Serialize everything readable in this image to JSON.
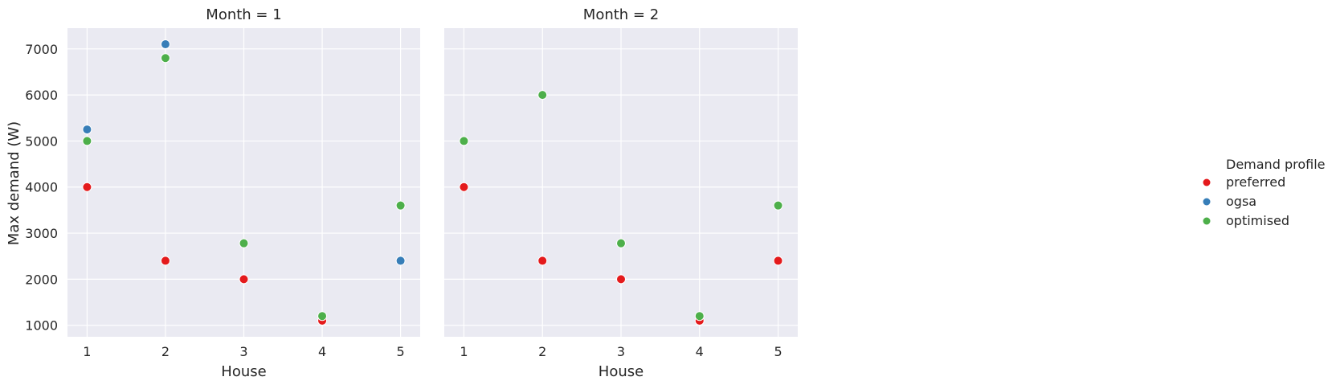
{
  "chart_data": {
    "type": "scatter",
    "facet_variable": "Month",
    "panels": [
      {
        "title": "Month = 1",
        "points": [
          {
            "series": "preferred",
            "x": 1,
            "y": 4000
          },
          {
            "series": "preferred",
            "x": 2,
            "y": 2400
          },
          {
            "series": "preferred",
            "x": 3,
            "y": 2000
          },
          {
            "series": "preferred",
            "x": 4,
            "y": 1100
          },
          {
            "series": "ogsa",
            "x": 1,
            "y": 5250
          },
          {
            "series": "ogsa",
            "x": 2,
            "y": 7100
          },
          {
            "series": "ogsa",
            "x": 5,
            "y": 2400
          },
          {
            "series": "optimised",
            "x": 1,
            "y": 5000
          },
          {
            "series": "optimised",
            "x": 2,
            "y": 6800
          },
          {
            "series": "optimised",
            "x": 3,
            "y": 2780
          },
          {
            "series": "optimised",
            "x": 4,
            "y": 1200
          },
          {
            "series": "optimised",
            "x": 5,
            "y": 3600
          }
        ]
      },
      {
        "title": "Month = 2",
        "points": [
          {
            "series": "preferred",
            "x": 1,
            "y": 4000
          },
          {
            "series": "preferred",
            "x": 2,
            "y": 2400
          },
          {
            "series": "preferred",
            "x": 3,
            "y": 2000
          },
          {
            "series": "preferred",
            "x": 4,
            "y": 1100
          },
          {
            "series": "preferred",
            "x": 5,
            "y": 2400
          },
          {
            "series": "optimised",
            "x": 1,
            "y": 5000
          },
          {
            "series": "optimised",
            "x": 2,
            "y": 6000
          },
          {
            "series": "optimised",
            "x": 3,
            "y": 2780
          },
          {
            "series": "optimised",
            "x": 4,
            "y": 1200
          },
          {
            "series": "optimised",
            "x": 5,
            "y": 3600
          }
        ]
      }
    ],
    "series": [
      {
        "name": "preferred",
        "color": "#e41a1c"
      },
      {
        "name": "ogsa",
        "color": "#377eb8"
      },
      {
        "name": "optimised",
        "color": "#4daf4a"
      }
    ],
    "legend_title": "Demand profile",
    "legend_position": "right",
    "xlabel": "House",
    "ylabel": "Max demand (W)",
    "x_ticks": [
      1,
      2,
      3,
      4,
      5
    ],
    "y_ticks": [
      1000,
      2000,
      3000,
      4000,
      5000,
      6000,
      7000
    ],
    "xlim": [
      0.75,
      5.25
    ],
    "ylim": [
      750,
      7450
    ],
    "grid": true,
    "background_color": "#eaeaf2",
    "grid_color": "#ffffff"
  }
}
